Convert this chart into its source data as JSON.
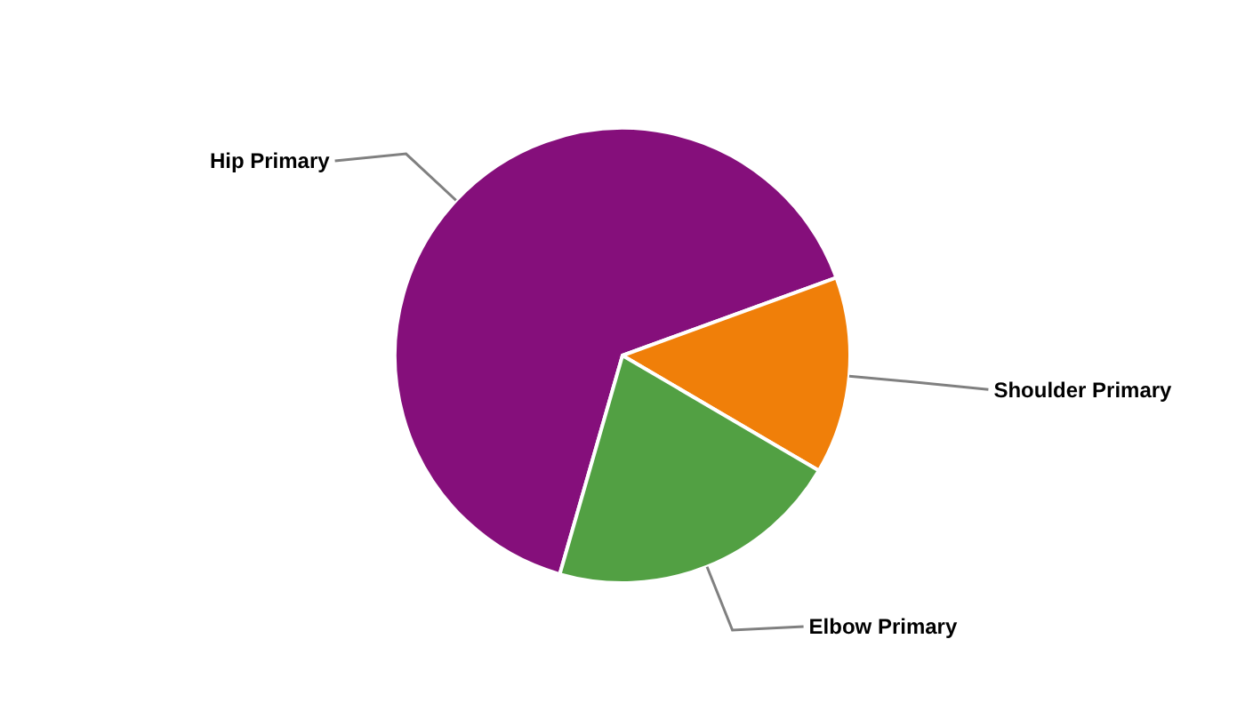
{
  "chart_data": {
    "type": "pie",
    "categories": [
      "Hip Primary",
      "Shoulder Primary",
      "Elbow Primary"
    ],
    "values": [
      65,
      14,
      21
    ],
    "colors": [
      "#850f7b",
      "#f07f09",
      "#52a043"
    ]
  }
}
